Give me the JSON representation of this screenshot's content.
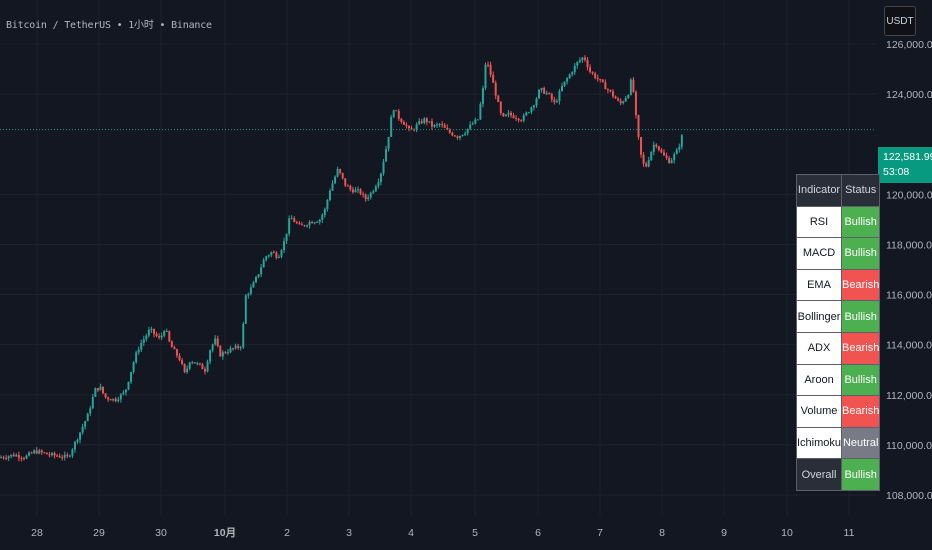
{
  "symbol_title": "Bitcoin / TetherUS • 1小时 • Binance",
  "currency_button": "USDT",
  "current_price": "122,581.99",
  "countdown": "53:08",
  "colors": {
    "background": "#131722",
    "up": "#26a69a",
    "down": "#ef5350",
    "price_label": "#089981",
    "bullish": "#4caf50",
    "bearish": "#f05350",
    "neutral": "#787b86"
  },
  "y_axis": {
    "labels": [
      "126,000.00",
      "124,000.00",
      "120,000.00",
      "118,000.00",
      "116,000.00",
      "114,000.00",
      "112,000.00",
      "110,000.00",
      "108,000.00"
    ]
  },
  "x_axis": {
    "labels": [
      "28",
      "29",
      "30",
      "10月",
      "2",
      "3",
      "4",
      "5",
      "6",
      "7",
      "8",
      "9",
      "10",
      "11"
    ]
  },
  "indicator_table": {
    "header_indicator": "Indicator",
    "header_status": "Status",
    "rows": [
      {
        "name": "RSI",
        "status": "Bullish"
      },
      {
        "name": "MACD",
        "status": "Bullish"
      },
      {
        "name": "EMA",
        "status": "Bearish"
      },
      {
        "name": "Bollinger",
        "status": "Bullish"
      },
      {
        "name": "ADX",
        "status": "Bearish"
      },
      {
        "name": "Aroon",
        "status": "Bullish"
      },
      {
        "name": "Volume",
        "status": "Bearish"
      },
      {
        "name": "Ichimoku",
        "status": "Neutral"
      },
      {
        "name": "Overall",
        "status": "Bullish"
      }
    ]
  },
  "chart_data": {
    "type": "candlestick",
    "y_range": [
      107200,
      127000
    ],
    "current_price": 122581.99,
    "path_points": [
      [
        0,
        109500
      ],
      [
        15,
        109600
      ],
      [
        25,
        109500
      ],
      [
        35,
        109750
      ],
      [
        50,
        109600
      ],
      [
        68,
        109500
      ],
      [
        80,
        110500
      ],
      [
        88,
        111200
      ],
      [
        95,
        112200
      ],
      [
        100,
        112300
      ],
      [
        105,
        111900
      ],
      [
        115,
        111800
      ],
      [
        125,
        112100
      ],
      [
        135,
        113500
      ],
      [
        140,
        114000
      ],
      [
        150,
        114600
      ],
      [
        160,
        114200
      ],
      [
        165,
        114700
      ],
      [
        170,
        114000
      ],
      [
        180,
        113400
      ],
      [
        185,
        112800
      ],
      [
        190,
        113400
      ],
      [
        198,
        113200
      ],
      [
        205,
        113000
      ],
      [
        210,
        113800
      ],
      [
        215,
        114200
      ],
      [
        220,
        113600
      ],
      [
        230,
        113800
      ],
      [
        238,
        113900
      ],
      [
        242,
        114000
      ],
      [
        245,
        115900
      ],
      [
        252,
        116300
      ],
      [
        258,
        116800
      ],
      [
        265,
        117500
      ],
      [
        272,
        117700
      ],
      [
        278,
        117500
      ],
      [
        285,
        118200
      ],
      [
        290,
        119100
      ],
      [
        300,
        118700
      ],
      [
        310,
        118900
      ],
      [
        320,
        119000
      ],
      [
        325,
        119400
      ],
      [
        330,
        120200
      ],
      [
        338,
        121000
      ],
      [
        345,
        120400
      ],
      [
        350,
        120200
      ],
      [
        360,
        120100
      ],
      [
        365,
        119800
      ],
      [
        372,
        120100
      ],
      [
        380,
        120700
      ],
      [
        388,
        122200
      ],
      [
        393,
        123500
      ],
      [
        398,
        123100
      ],
      [
        405,
        122800
      ],
      [
        410,
        122500
      ],
      [
        418,
        122800
      ],
      [
        425,
        123000
      ],
      [
        433,
        122700
      ],
      [
        440,
        122800
      ],
      [
        448,
        122500
      ],
      [
        458,
        122300
      ],
      [
        465,
        122500
      ],
      [
        472,
        122800
      ],
      [
        478,
        123000
      ],
      [
        483,
        124200
      ],
      [
        486,
        125400
      ],
      [
        492,
        124600
      ],
      [
        497,
        123800
      ],
      [
        502,
        123000
      ],
      [
        508,
        123200
      ],
      [
        515,
        123100
      ],
      [
        522,
        123000
      ],
      [
        528,
        123300
      ],
      [
        535,
        123700
      ],
      [
        540,
        124200
      ],
      [
        548,
        124000
      ],
      [
        555,
        123600
      ],
      [
        562,
        124300
      ],
      [
        570,
        124800
      ],
      [
        578,
        125300
      ],
      [
        584,
        125500
      ],
      [
        590,
        124900
      ],
      [
        598,
        124600
      ],
      [
        605,
        124300
      ],
      [
        612,
        124000
      ],
      [
        620,
        123600
      ],
      [
        628,
        124000
      ],
      [
        632,
        124700
      ],
      [
        635,
        123400
      ],
      [
        640,
        121700
      ],
      [
        645,
        121000
      ],
      [
        650,
        121600
      ],
      [
        655,
        122100
      ],
      [
        662,
        121600
      ],
      [
        670,
        121300
      ],
      [
        678,
        121800
      ],
      [
        684,
        122580
      ]
    ]
  }
}
